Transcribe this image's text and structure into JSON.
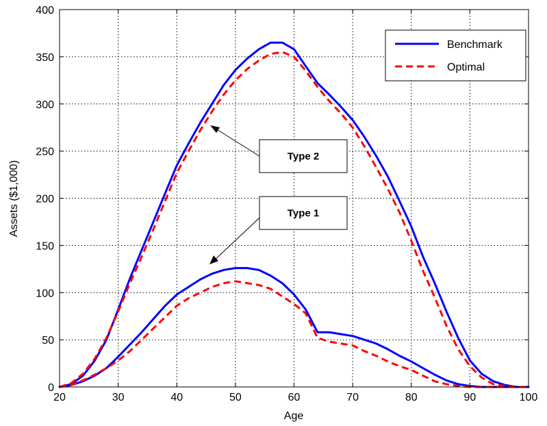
{
  "chart_data": {
    "type": "line",
    "title": "",
    "xlabel": "Age",
    "ylabel": "Assets ($1,000)",
    "xlim": [
      20,
      100
    ],
    "ylim": [
      0,
      400
    ],
    "xticks": [
      20,
      30,
      40,
      50,
      60,
      70,
      80,
      90,
      100
    ],
    "yticks": [
      0,
      50,
      100,
      150,
      200,
      250,
      300,
      350,
      400
    ],
    "grid": true,
    "legend_position": "top-right",
    "legend": [
      "Benchmark",
      "Optimal"
    ],
    "colors": {
      "benchmark": "#0000ff",
      "optimal": "#ff0000"
    },
    "series": [
      {
        "name": "Benchmark",
        "group": "Type 2",
        "style": "solid",
        "x": [
          20,
          22,
          24,
          26,
          28,
          30,
          32,
          34,
          36,
          38,
          40,
          42,
          44,
          46,
          48,
          50,
          52,
          54,
          56,
          58,
          60,
          62,
          64,
          66,
          68,
          70,
          72,
          74,
          76,
          78,
          80,
          82,
          84,
          86,
          88,
          90,
          92,
          94,
          96,
          98,
          100
        ],
        "y": [
          0,
          3,
          12,
          28,
          50,
          82,
          115,
          145,
          175,
          205,
          235,
          258,
          280,
          300,
          320,
          336,
          348,
          358,
          365,
          365,
          358,
          340,
          322,
          310,
          297,
          283,
          265,
          245,
          223,
          197,
          170,
          138,
          110,
          80,
          52,
          28,
          14,
          6,
          2,
          0,
          0
        ]
      },
      {
        "name": "Optimal",
        "group": "Type 2",
        "style": "dashed",
        "x": [
          20,
          22,
          24,
          26,
          28,
          30,
          32,
          34,
          36,
          38,
          40,
          42,
          44,
          46,
          48,
          50,
          52,
          54,
          56,
          58,
          60,
          62,
          64,
          66,
          68,
          70,
          72,
          74,
          76,
          78,
          80,
          82,
          84,
          86,
          88,
          90,
          92,
          94,
          96,
          98,
          100
        ],
        "y": [
          0,
          4,
          14,
          30,
          52,
          80,
          110,
          138,
          167,
          197,
          227,
          250,
          272,
          292,
          310,
          325,
          337,
          346,
          353,
          355,
          350,
          335,
          318,
          303,
          290,
          275,
          255,
          233,
          210,
          185,
          155,
          123,
          95,
          65,
          40,
          22,
          10,
          3,
          1,
          0,
          0
        ]
      },
      {
        "name": "Benchmark",
        "group": "Type 1",
        "style": "solid",
        "x": [
          20,
          22,
          24,
          26,
          28,
          30,
          32,
          34,
          36,
          38,
          40,
          42,
          44,
          46,
          48,
          50,
          52,
          54,
          56,
          58,
          60,
          62,
          64,
          66,
          68,
          70,
          72,
          74,
          76,
          78,
          80,
          82,
          84,
          86,
          88,
          90,
          92,
          94,
          96,
          98,
          100
        ],
        "y": [
          0,
          2,
          6,
          12,
          20,
          32,
          45,
          58,
          72,
          86,
          98,
          106,
          114,
          120,
          124,
          126,
          126,
          124,
          118,
          110,
          98,
          82,
          58,
          58,
          56,
          54,
          50,
          46,
          40,
          33,
          27,
          20,
          13,
          7,
          3,
          1,
          0,
          0,
          0,
          0,
          0
        ]
      },
      {
        "name": "Optimal",
        "group": "Type 1",
        "style": "dashed",
        "x": [
          20,
          22,
          24,
          26,
          28,
          30,
          32,
          34,
          36,
          38,
          40,
          42,
          44,
          46,
          48,
          50,
          52,
          54,
          56,
          58,
          60,
          62,
          64,
          66,
          68,
          70,
          72,
          74,
          76,
          78,
          80,
          82,
          84,
          86,
          88,
          90,
          92,
          94,
          96,
          98,
          100
        ],
        "y": [
          0,
          2,
          7,
          13,
          20,
          28,
          38,
          50,
          62,
          74,
          86,
          94,
          100,
          106,
          110,
          112,
          110,
          108,
          104,
          96,
          88,
          78,
          52,
          48,
          46,
          44,
          38,
          33,
          27,
          22,
          18,
          12,
          6,
          3,
          1,
          0,
          0,
          0,
          0,
          0,
          0
        ]
      }
    ],
    "annotations": [
      {
        "text": "Type 2",
        "arrow_to": {
          "x": 46,
          "y": 278
        }
      },
      {
        "text": "Type 1",
        "arrow_to": {
          "x": 44,
          "y": 130
        }
      }
    ]
  }
}
